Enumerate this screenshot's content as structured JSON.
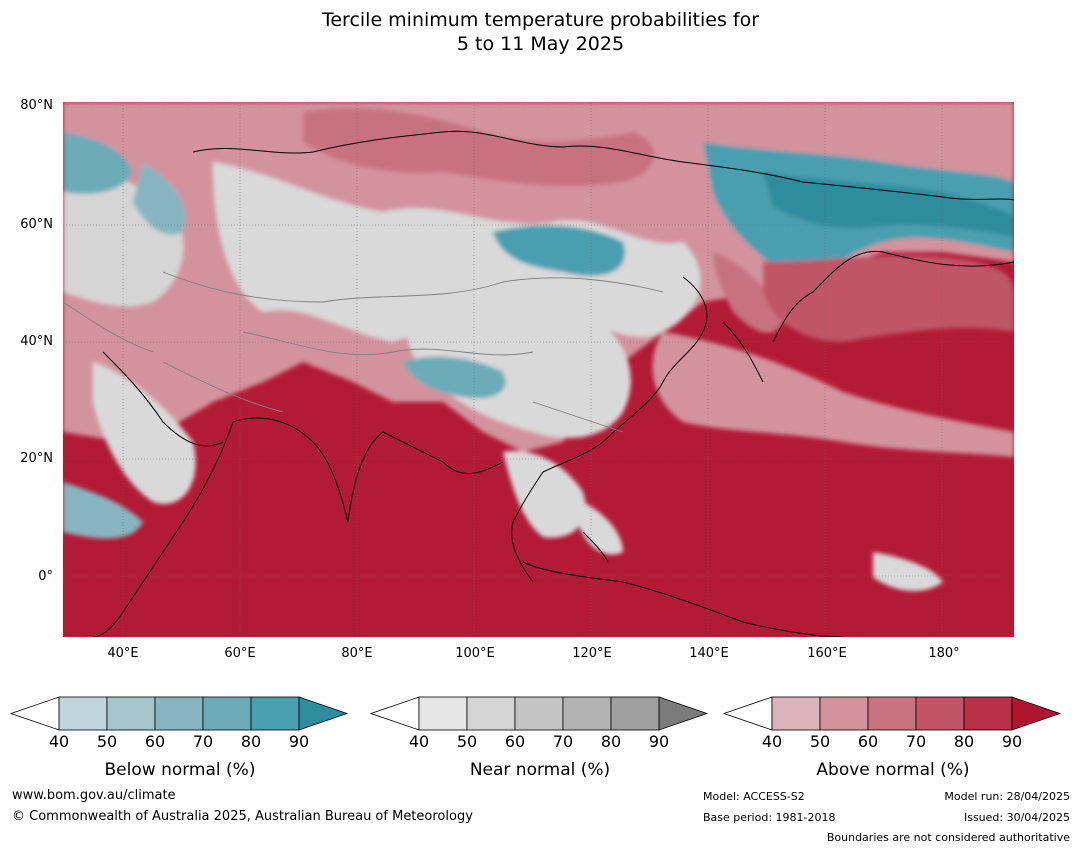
{
  "title": {
    "line1": "Tercile minimum temperature probabilities for",
    "line2": "5 to 11 May 2025"
  },
  "map": {
    "lat_labels": [
      "80°N",
      "60°N",
      "40°N",
      "20°N",
      "0°"
    ],
    "lon_labels": [
      "40°E",
      "60°E",
      "80°E",
      "100°E",
      "120°E",
      "140°E",
      "160°E",
      "180°"
    ],
    "colors": {
      "ocean_above": "#b31a36",
      "land_near": "#d9d9d9",
      "below": "#3d98ac",
      "coast": "#000000",
      "border": "#808080"
    }
  },
  "colorbars": [
    {
      "label": "Below normal (%)",
      "ticks": [
        "40",
        "50",
        "60",
        "70",
        "80",
        "90"
      ],
      "colors": [
        "#ffffff",
        "#bfd4dc",
        "#a5c6cc",
        "#87b5bf",
        "#6cacb8",
        "#4a9fb0",
        "#2e8c9e"
      ]
    },
    {
      "label": "Near normal (%)",
      "ticks": [
        "40",
        "50",
        "60",
        "70",
        "80",
        "90"
      ],
      "colors": [
        "#ffffff",
        "#e6e6e6",
        "#d5d5d5",
        "#c4c4c4",
        "#b3b3b3",
        "#a0a0a0",
        "#7a7a7a"
      ]
    },
    {
      "label": "Above normal (%)",
      "ticks": [
        "40",
        "50",
        "60",
        "70",
        "80",
        "90"
      ],
      "colors": [
        "#ffffff",
        "#dcb3bb",
        "#d3939d",
        "#c9727f",
        "#bf5565",
        "#b83147",
        "#b0152f"
      ]
    }
  ],
  "footer": {
    "website": "www.bom.gov.au/climate",
    "copyright": "© Commonwealth of Australia 2025, Australian Bureau of Meteorology",
    "model": "Model: ACCESS-S2",
    "base_period": "Base period: 1981-2018",
    "model_run": "Model run: 28/04/2025",
    "issued": "Issued: 30/04/2025",
    "disclaimer": "Boundaries are not considered authoritative"
  }
}
